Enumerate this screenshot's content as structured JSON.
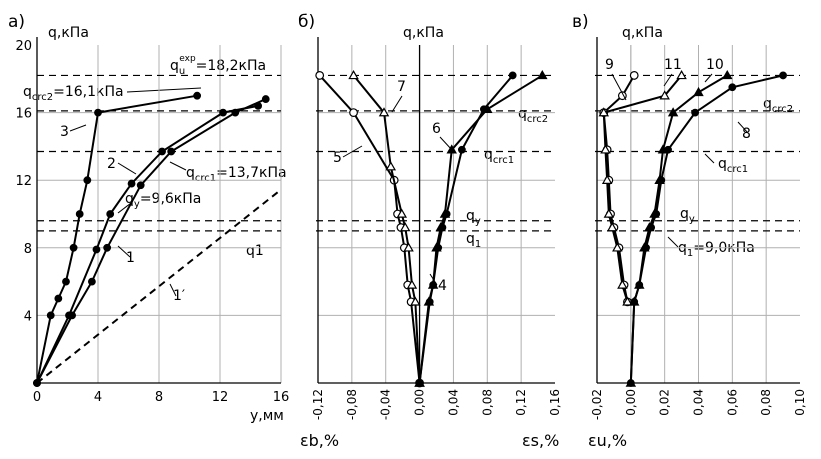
{
  "chart_data": [
    {
      "type": "line",
      "panel_label": "а)",
      "ylabel": "q,кПа",
      "xlabel": "y,мм",
      "xlim": [
        0,
        16
      ],
      "ylim": [
        0,
        20
      ],
      "x_ticks": [
        "0",
        "4",
        "8",
        "12",
        "16"
      ],
      "y_ticks": [
        "4",
        "8",
        "12",
        "16",
        "20"
      ],
      "series": [
        {
          "name": "3",
          "style": "filled-circle",
          "x": [
            0,
            0.9,
            1.4,
            1.9,
            2.4,
            2.8,
            3.3,
            4.0,
            10.5
          ],
          "y": [
            0,
            4,
            5,
            6,
            8,
            10,
            12,
            16,
            17
          ]
        },
        {
          "name": "2",
          "style": "filled-circle",
          "x": [
            0,
            2.3,
            3.6,
            4.6,
            6.8,
            8.8,
            13.0,
            15.0
          ],
          "y": [
            0,
            4,
            6,
            8,
            11.7,
            13.7,
            16,
            16.8
          ]
        },
        {
          "name": "1",
          "style": "filled-circle",
          "x": [
            0,
            2.1,
            3.9,
            4.8,
            6.2,
            8.2,
            12.2,
            14.5
          ],
          "y": [
            0,
            4,
            7.9,
            10,
            11.8,
            13.7,
            16,
            16.4
          ]
        },
        {
          "name": "1′",
          "style": "dashed",
          "x": [
            0,
            15.8
          ],
          "y": [
            0,
            11.3
          ]
        }
      ],
      "hlines": [
        {
          "y": 18.2,
          "label": "qu^exp=18,2кПа"
        },
        {
          "y": 16.1,
          "label": "qcrc2=16,1кПа"
        },
        {
          "y": 13.7,
          "label": "qcrc1=13,7кПа"
        },
        {
          "y": 9.6,
          "label": "qy=9,6кПа"
        },
        {
          "y": 9.0,
          "label": "q1"
        }
      ]
    },
    {
      "type": "line",
      "panel_label": "б)",
      "ylabel": "q,кПа",
      "xlabel_left": "εb,%",
      "xlabel_right": "εs,%",
      "xlim": [
        -0.12,
        0.16
      ],
      "ylim": [
        0,
        20
      ],
      "x_ticks": [
        "-0,12",
        "-0,08",
        "-0,04",
        "0,00",
        "0,04",
        "0,08",
        "0,12",
        "0,16"
      ],
      "series": [
        {
          "name": "5",
          "style": "open-circle",
          "x": [
            0,
            -0.01,
            -0.014,
            -0.018,
            -0.022,
            -0.026,
            -0.03,
            -0.078,
            -0.118
          ],
          "y": [
            0,
            4.8,
            5.8,
            8,
            9.2,
            10,
            12,
            16,
            18.2
          ]
        },
        {
          "name": "7",
          "style": "open-triangle",
          "x": [
            0,
            -0.005,
            -0.009,
            -0.013,
            -0.017,
            -0.021,
            -0.034,
            -0.042,
            -0.078
          ],
          "y": [
            0,
            4.8,
            5.8,
            8,
            9.2,
            10,
            12.8,
            16,
            18.2
          ]
        },
        {
          "name": "4",
          "style": "filled-circle",
          "x": [
            0,
            0.012,
            0.016,
            0.022,
            0.027,
            0.032,
            0.05,
            0.076,
            0.11
          ],
          "y": [
            0,
            4.8,
            5.8,
            8,
            9.2,
            10,
            13.8,
            16.2,
            18.2
          ]
        },
        {
          "name": "6",
          "style": "filled-triangle",
          "x": [
            0,
            0.011,
            0.016,
            0.02,
            0.025,
            0.03,
            0.038,
            0.08,
            0.145
          ],
          "y": [
            0,
            4.8,
            5.8,
            8,
            9.2,
            10,
            13.8,
            16.2,
            18.2
          ]
        }
      ],
      "hlines": [
        {
          "y": 18.2
        },
        {
          "y": 16.1,
          "label": "qcrc2"
        },
        {
          "y": 13.7,
          "label": "qcrc1"
        },
        {
          "y": 9.6,
          "label": "qy"
        },
        {
          "y": 9.0,
          "label": "q1"
        }
      ]
    },
    {
      "type": "line",
      "panel_label": "в)",
      "ylabel": "q,кПа",
      "xlabel": "εu,%",
      "xlim": [
        -0.02,
        0.1
      ],
      "ylim": [
        0,
        20
      ],
      "x_ticks": [
        "-0,02",
        "0,00",
        "0,02",
        "0,04",
        "0,06",
        "0,08",
        "0,10"
      ],
      "series": [
        {
          "name": "9",
          "style": "open-circle",
          "x": [
            -0.002,
            -0.004,
            -0.007,
            -0.01,
            -0.012,
            -0.013,
            -0.014,
            -0.016,
            -0.005,
            0.002
          ],
          "y": [
            4.8,
            5.8,
            8,
            9.2,
            10,
            12,
            13.8,
            16,
            17,
            18.2
          ]
        },
        {
          "name": "11",
          "style": "open-triangle",
          "x": [
            -0.002,
            -0.005,
            -0.008,
            -0.011,
            -0.013,
            -0.014,
            -0.015,
            -0.016,
            0.02,
            0.03
          ],
          "y": [
            4.8,
            5.8,
            8,
            9.2,
            10,
            12,
            13.8,
            16,
            17,
            18.2
          ]
        },
        {
          "name": "8",
          "style": "filled-circle",
          "x": [
            0,
            0.002,
            0.005,
            0.009,
            0.012,
            0.015,
            0.018,
            0.022,
            0.038,
            0.06,
            0.09
          ],
          "y": [
            0,
            4.8,
            5.8,
            8,
            9.2,
            10,
            12,
            13.8,
            16,
            17.5,
            18.2
          ]
        },
        {
          "name": "10",
          "style": "filled-triangle",
          "x": [
            0,
            0.002,
            0.005,
            0.008,
            0.011,
            0.014,
            0.017,
            0.019,
            0.025,
            0.04,
            0.057
          ],
          "y": [
            0,
            4.8,
            5.8,
            8,
            9.2,
            10,
            12,
            13.8,
            16,
            17.2,
            18.2
          ]
        }
      ],
      "hlines": [
        {
          "y": 18.2
        },
        {
          "y": 16.1,
          "label": "qcrc2"
        },
        {
          "y": 13.7,
          "label": "qcrc1"
        },
        {
          "y": 9.6,
          "label": "qy"
        },
        {
          "y": 9.0,
          "label": "q1=9,0кПа"
        }
      ]
    }
  ]
}
